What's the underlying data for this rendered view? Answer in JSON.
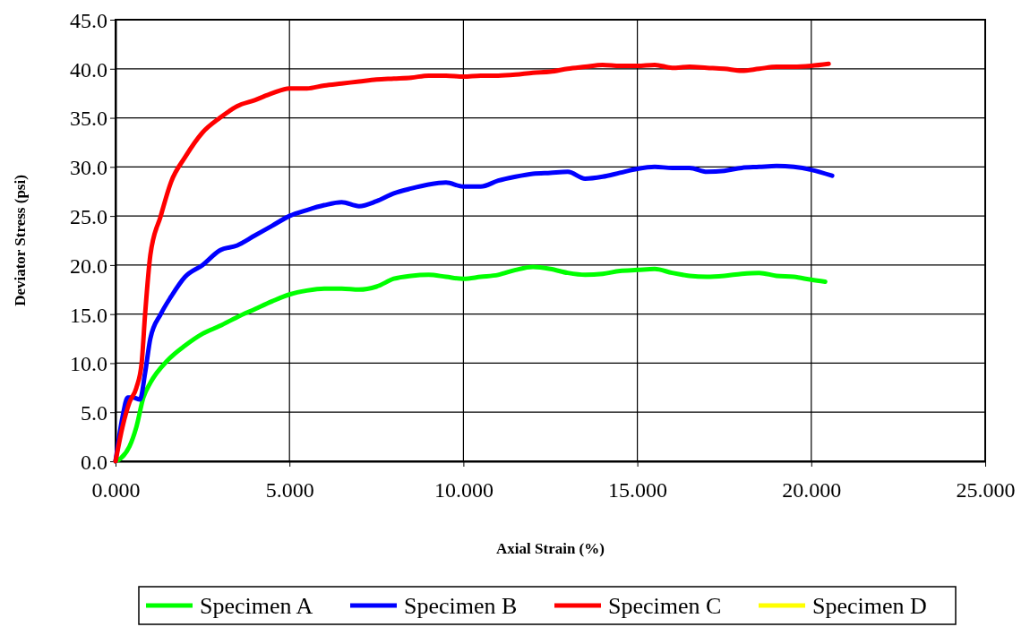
{
  "chart_data": {
    "type": "line",
    "xlabel": "Axial Strain (%)",
    "ylabel": "Deviator Stress (psi)",
    "xlim": [
      0,
      25
    ],
    "ylim": [
      0,
      45
    ],
    "xticks": [
      {
        "value": 0,
        "label": "0.000"
      },
      {
        "value": 5,
        "label": "5.000"
      },
      {
        "value": 10,
        "label": "10.000"
      },
      {
        "value": 15,
        "label": "15.000"
      },
      {
        "value": 20,
        "label": "20.000"
      },
      {
        "value": 25,
        "label": "25.000"
      }
    ],
    "yticks": [
      {
        "value": 0,
        "label": "0.0"
      },
      {
        "value": 5,
        "label": "5.0"
      },
      {
        "value": 10,
        "label": "10.0"
      },
      {
        "value": 15,
        "label": "15.0"
      },
      {
        "value": 20,
        "label": "20.0"
      },
      {
        "value": 25,
        "label": "25.0"
      },
      {
        "value": 30,
        "label": "30.0"
      },
      {
        "value": 35,
        "label": "35.0"
      },
      {
        "value": 40,
        "label": "40.0"
      },
      {
        "value": 45,
        "label": "45.0"
      }
    ],
    "grid": true,
    "legend": "bottom",
    "marker": "none",
    "line_style": "solid",
    "series": [
      {
        "name": "Specimen A",
        "color": "#00ff00",
        "x": [
          0,
          0.15,
          0.4,
          0.6,
          0.8,
          1,
          1.5,
          2,
          2.5,
          3,
          3.5,
          4,
          4.5,
          5,
          5.5,
          6,
          6.5,
          7,
          7.5,
          8,
          8.5,
          9,
          9.5,
          10,
          10.5,
          11,
          11.5,
          12,
          12.5,
          13,
          13.5,
          14,
          14.5,
          15,
          15.5,
          16,
          16.5,
          17,
          17.5,
          18,
          18.5,
          19,
          19.5,
          20,
          20.4
        ],
        "values": [
          0,
          0.3,
          1.5,
          3.5,
          6.5,
          8,
          10.3,
          11.8,
          13,
          13.8,
          14.7,
          15.5,
          16.3,
          17,
          17.4,
          17.6,
          17.6,
          17.5,
          17.8,
          18.6,
          18.9,
          19,
          18.8,
          18.6,
          18.8,
          19,
          19.5,
          19.8,
          19.6,
          19.2,
          19,
          19.1,
          19.4,
          19.5,
          19.6,
          19.2,
          18.9,
          18.8,
          18.9,
          19.1,
          19.2,
          18.9,
          18.8,
          18.5,
          18.3
        ]
      },
      {
        "name": "Specimen B",
        "color": "#0000ff",
        "x": [
          0,
          0.2,
          0.35,
          0.5,
          0.7,
          0.85,
          1,
          1.3,
          1.6,
          2,
          2.5,
          3,
          3.5,
          4,
          4.5,
          5,
          5.5,
          6,
          6.5,
          7,
          7.5,
          8,
          8.5,
          9,
          9.5,
          10,
          10.5,
          11,
          11.5,
          12,
          12.5,
          13,
          13.5,
          14,
          14.5,
          15,
          15.5,
          16,
          16.5,
          17,
          17.5,
          18,
          18.5,
          19,
          19.5,
          20,
          20.6
        ],
        "values": [
          0,
          4.5,
          6.5,
          6.5,
          6.3,
          9,
          12.5,
          15,
          16.8,
          18.8,
          20,
          21.5,
          22,
          23,
          24,
          25,
          25.6,
          26.1,
          26.4,
          26,
          26.5,
          27.3,
          27.8,
          28.2,
          28.4,
          28,
          28,
          28.6,
          29,
          29.3,
          29.4,
          29.5,
          28.8,
          29,
          29.4,
          29.8,
          30,
          29.9,
          29.9,
          29.5,
          29.6,
          29.9,
          30,
          30.1,
          30,
          29.7,
          29.1
        ]
      },
      {
        "name": "Specimen C",
        "color": "#ff0000",
        "x": [
          0,
          0.2,
          0.4,
          0.6,
          0.75,
          0.85,
          1,
          1.3,
          1.6,
          2,
          2.5,
          3,
          3.5,
          4,
          4.5,
          5,
          5.5,
          6,
          6.5,
          7,
          7.5,
          8,
          8.5,
          9,
          9.5,
          10,
          10.5,
          11,
          11.5,
          12,
          12.5,
          13,
          13.5,
          14,
          14.5,
          15,
          15.5,
          16,
          16.5,
          17,
          17.5,
          18,
          18.5,
          19,
          19.5,
          20,
          20.5
        ],
        "values": [
          0,
          3.5,
          6,
          7.5,
          10,
          15,
          21,
          25,
          28.5,
          31,
          33.5,
          35,
          36.2,
          36.8,
          37.5,
          38,
          38,
          38.3,
          38.5,
          38.7,
          38.9,
          39,
          39.1,
          39.3,
          39.3,
          39.2,
          39.3,
          39.3,
          39.4,
          39.6,
          39.7,
          40,
          40.2,
          40.4,
          40.3,
          40.3,
          40.4,
          40.1,
          40.2,
          40.1,
          40,
          39.8,
          40,
          40.2,
          40.2,
          40.3,
          40.5
        ]
      },
      {
        "name": "Specimen D",
        "color": "#ffff00"
      }
    ]
  }
}
